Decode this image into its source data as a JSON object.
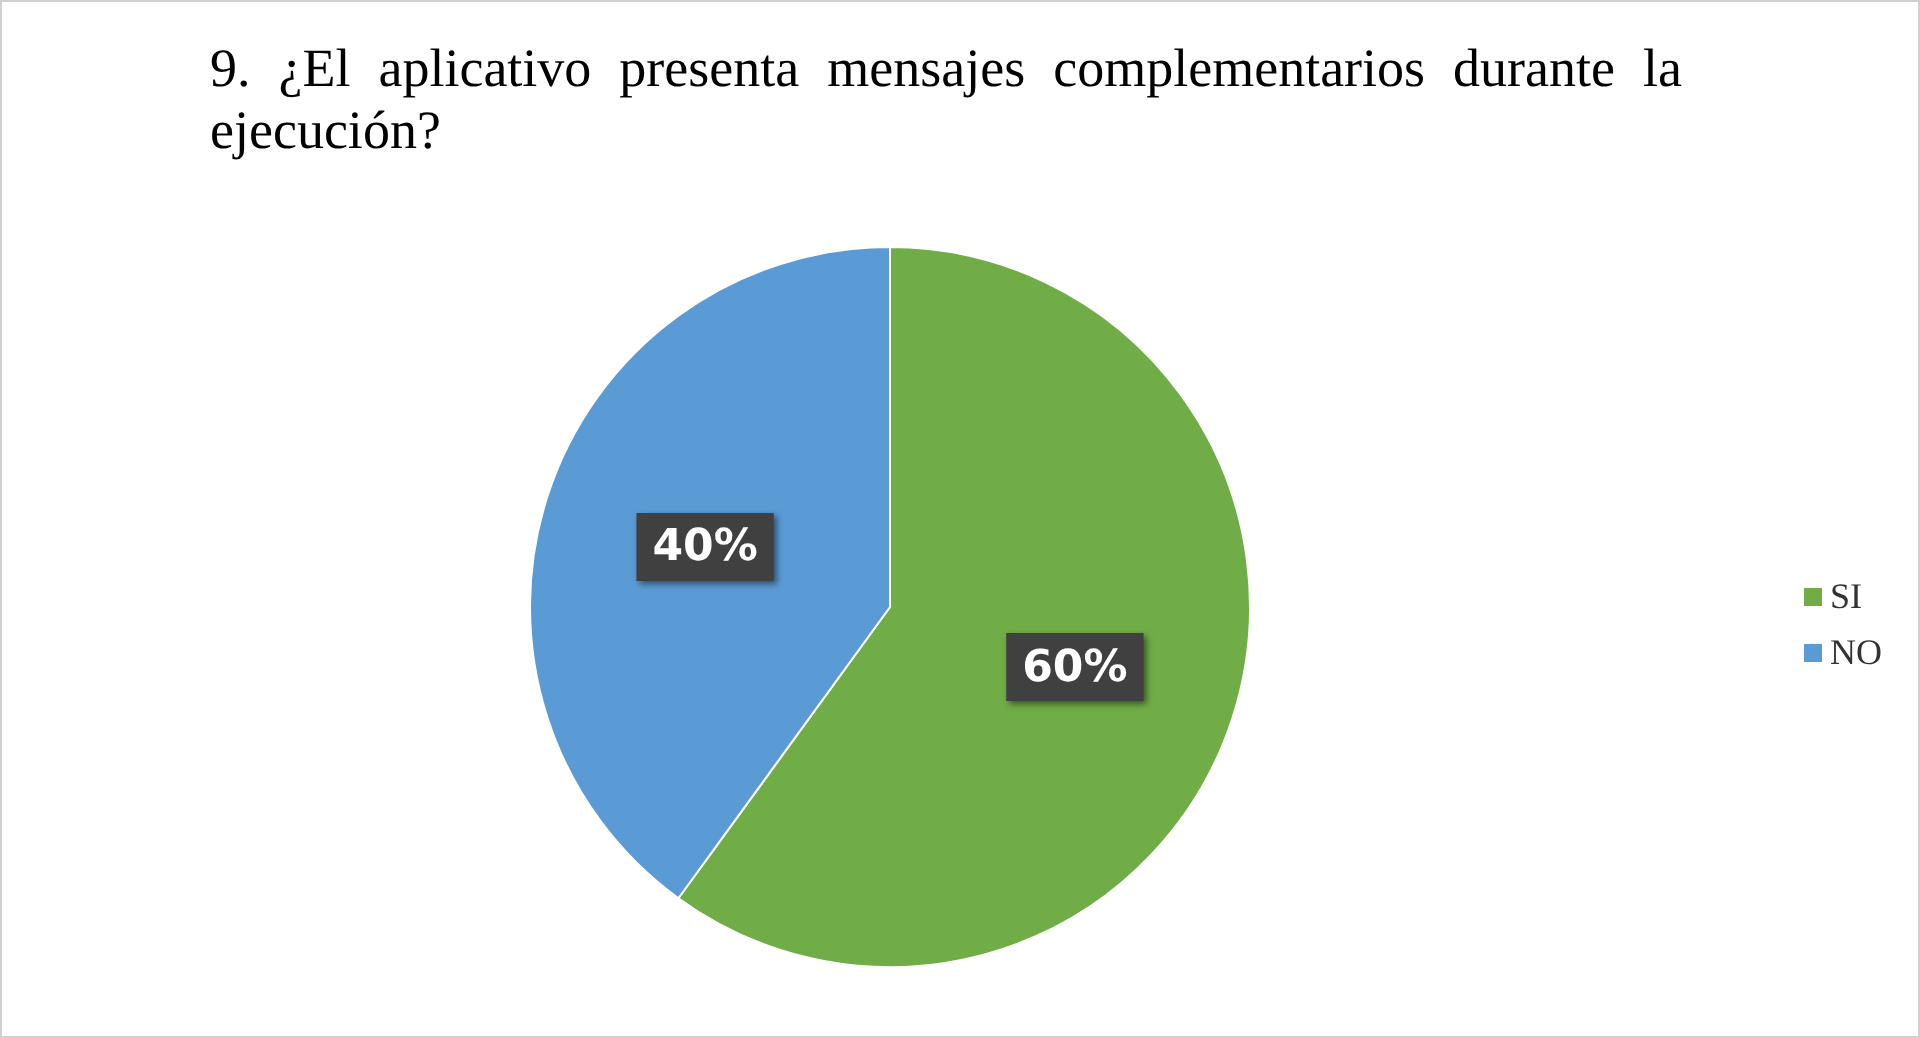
{
  "chart_data": {
    "type": "pie",
    "title": "9. ¿El aplicativo presenta mensajes complementarios durante la ejecución?",
    "categories": [
      "SI",
      "NO"
    ],
    "values": [
      60,
      40
    ],
    "colors": [
      "#70ad47",
      "#5b9bd5"
    ],
    "value_labels": [
      "60%",
      "40%"
    ],
    "legend": "right"
  }
}
